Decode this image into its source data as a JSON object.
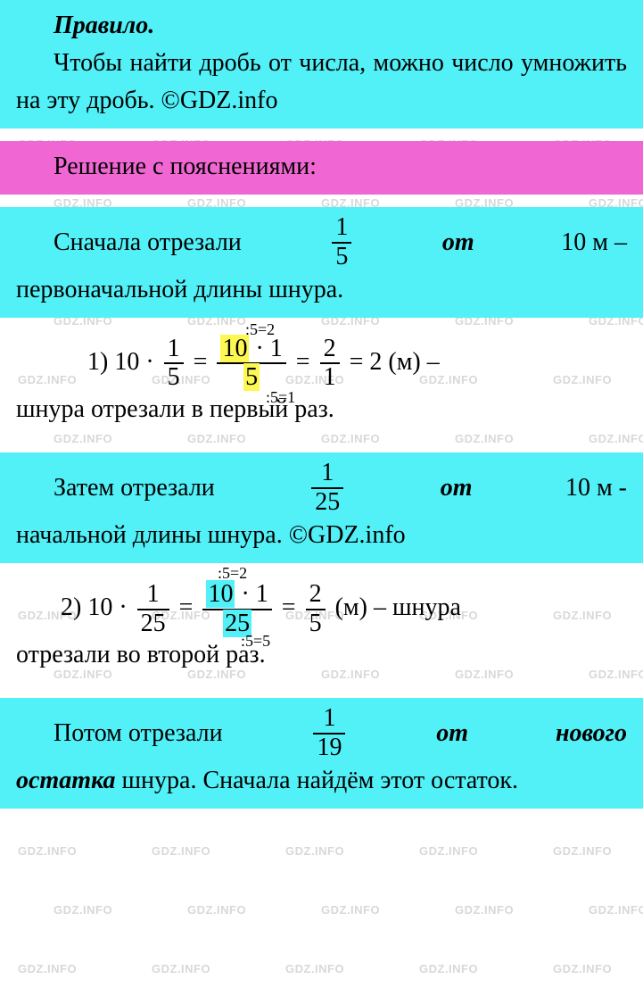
{
  "watermark_text": "GDZ.INFO",
  "rule": {
    "title": "Правило.",
    "body": "Чтобы найти дробь от числа, можно число умножить на эту дробь. ©GDZ.info"
  },
  "solution_header": "Решение с пояснениями:",
  "step1": {
    "text_a": "Сначала отрезали",
    "frac_num": "1",
    "frac_den": "5",
    "ot": "от",
    "text_b": "10 м –",
    "text_c": "первоначальной длины шнура."
  },
  "eq1": {
    "label": "1)",
    "lhs_a": "10 ·",
    "f1_num": "1",
    "f1_den": "5",
    "f2_num_a": "10",
    "f2_num_b": " · 1",
    "f2_den": "5",
    "f3_num": "2",
    "f3_den": "1",
    "tail": "= 2 (м) –",
    "anno_top": ":5=2",
    "anno_bot": ":5=1",
    "caption": " шнура отрезали в первый раз."
  },
  "step2": {
    "text_a": "Затем отрезали",
    "frac_num": "1",
    "frac_den": "25",
    "ot": "от",
    "text_b": "10 м -",
    "text_c": "начальной длины шнура. ©GDZ.info"
  },
  "eq2": {
    "label": "2)",
    "lhs_a": "10 ·",
    "f1_num": "1",
    "f1_den": "25",
    "f2_num_a": "10",
    "f2_num_b": " · 1",
    "f2_den": "25",
    "f3_num": "2",
    "f3_den": "5",
    "tail": " (м) – шнура",
    "anno_top": ":5=2",
    "anno_bot": ":5=5",
    "caption": " отрезали во второй раз."
  },
  "step3": {
    "text_a": "Потом отрезали",
    "frac_num": "1",
    "frac_den": "19",
    "ot": "от",
    "text_b": "нового",
    "text_c": "остатка",
    "text_d": " шнура. Сначала найдём этот остаток."
  },
  "colors": {
    "cyan": "#52f0f7",
    "magenta": "#f067d4",
    "hl_yellow": "#fcf751",
    "watermark": "#d8d8d8",
    "text": "#000000"
  }
}
